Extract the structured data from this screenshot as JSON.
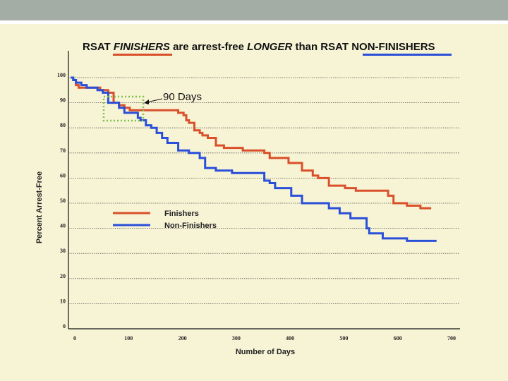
{
  "title": {
    "part1": "RSAT ",
    "part2": "FINISHERS",
    "part3": " are arrest-free ",
    "part4": "LONGER",
    "part5": " than RSAT ",
    "part6": "NON-FINISHERS"
  },
  "chart_data": {
    "type": "line",
    "xlabel": "Number of Days",
    "ylabel": "Percent Arrest-Free",
    "xlim": [
      0,
      700
    ],
    "ylim": [
      0,
      100
    ],
    "xticks": [
      "0",
      "100",
      "200",
      "300",
      "400",
      "500",
      "600",
      "700"
    ],
    "yticks": [
      "0",
      "10",
      "20",
      "30",
      "40",
      "50",
      "60",
      "70",
      "80",
      "90",
      "100"
    ],
    "grid": true,
    "legend": "center-left",
    "annotation": "90 Days",
    "series": [
      {
        "name": "Finishers",
        "color": "#d9502a",
        "points": [
          [
            0,
            100
          ],
          [
            5,
            99
          ],
          [
            10,
            97
          ],
          [
            15,
            96
          ],
          [
            25,
            96
          ],
          [
            35,
            96
          ],
          [
            45,
            96
          ],
          [
            55,
            95
          ],
          [
            70,
            94
          ],
          [
            80,
            90
          ],
          [
            90,
            89
          ],
          [
            100,
            88
          ],
          [
            110,
            87
          ],
          [
            120,
            87
          ],
          [
            140,
            87
          ],
          [
            190,
            87
          ],
          [
            200,
            86
          ],
          [
            210,
            85
          ],
          [
            215,
            83
          ],
          [
            220,
            82
          ],
          [
            230,
            79
          ],
          [
            240,
            78
          ],
          [
            245,
            77
          ],
          [
            255,
            76
          ],
          [
            270,
            73
          ],
          [
            285,
            72
          ],
          [
            300,
            72
          ],
          [
            320,
            71
          ],
          [
            345,
            71
          ],
          [
            360,
            70
          ],
          [
            370,
            68
          ],
          [
            395,
            68
          ],
          [
            405,
            66
          ],
          [
            420,
            66
          ],
          [
            430,
            63
          ],
          [
            440,
            63
          ],
          [
            450,
            61
          ],
          [
            460,
            60
          ],
          [
            470,
            60
          ],
          [
            480,
            57
          ],
          [
            500,
            57
          ],
          [
            510,
            56
          ],
          [
            520,
            56
          ],
          [
            530,
            55
          ],
          [
            580,
            55
          ],
          [
            590,
            53
          ],
          [
            600,
            50
          ],
          [
            610,
            50
          ],
          [
            625,
            49
          ],
          [
            650,
            48
          ],
          [
            670,
            48
          ]
        ]
      },
      {
        "name": "Non-Finishers",
        "color": "#2a4fd9",
        "points": [
          [
            0,
            100
          ],
          [
            5,
            99
          ],
          [
            10,
            98
          ],
          [
            20,
            97
          ],
          [
            30,
            96
          ],
          [
            40,
            96
          ],
          [
            50,
            95
          ],
          [
            60,
            94
          ],
          [
            70,
            90
          ],
          [
            80,
            90
          ],
          [
            90,
            88
          ],
          [
            100,
            86
          ],
          [
            110,
            86
          ],
          [
            125,
            84
          ],
          [
            130,
            83
          ],
          [
            140,
            81
          ],
          [
            150,
            80
          ],
          [
            160,
            78
          ],
          [
            170,
            76
          ],
          [
            180,
            74
          ],
          [
            190,
            74
          ],
          [
            200,
            71
          ],
          [
            210,
            71
          ],
          [
            220,
            70
          ],
          [
            230,
            70
          ],
          [
            240,
            68
          ],
          [
            250,
            64
          ],
          [
            260,
            64
          ],
          [
            270,
            63
          ],
          [
            280,
            63
          ],
          [
            290,
            63
          ],
          [
            300,
            62
          ],
          [
            320,
            62
          ],
          [
            350,
            62
          ],
          [
            360,
            59
          ],
          [
            370,
            58
          ],
          [
            380,
            56
          ],
          [
            400,
            56
          ],
          [
            410,
            53
          ],
          [
            420,
            53
          ],
          [
            430,
            50
          ],
          [
            470,
            50
          ],
          [
            480,
            48
          ],
          [
            500,
            46
          ],
          [
            510,
            46
          ],
          [
            520,
            44
          ],
          [
            540,
            44
          ],
          [
            550,
            40
          ],
          [
            555,
            38
          ],
          [
            570,
            38
          ],
          [
            580,
            36
          ],
          [
            620,
            36
          ],
          [
            625,
            35
          ],
          [
            660,
            35
          ],
          [
            680,
            35
          ]
        ]
      }
    ]
  }
}
